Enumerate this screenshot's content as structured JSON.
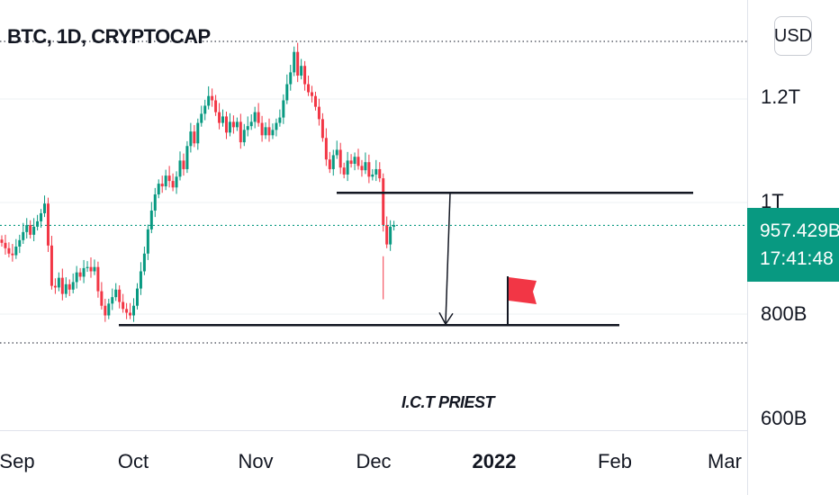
{
  "chart_data": {
    "type": "candlestick",
    "symbol": "BTC, 1D, CRYPTOCAP",
    "currency": "USD",
    "watermark": "I.C.T PRIEST",
    "current_price": "957.429B",
    "countdown": "17:41:48",
    "y_ticks": [
      "1.2T",
      "1T",
      "800B",
      "600B"
    ],
    "x_ticks": [
      "Sep",
      "Oct",
      "Nov",
      "Dec",
      "2022",
      "Feb",
      "Mar"
    ],
    "ylim": [
      600,
      1310
    ],
    "up_color": "#089981",
    "down_color": "#f23645",
    "close_series": [
      925,
      915,
      905,
      902,
      918,
      930,
      945,
      958,
      940,
      955,
      965,
      980,
      998,
      920,
      845,
      842,
      860,
      830,
      848,
      838,
      852,
      870,
      862,
      878,
      880,
      872,
      880,
      835,
      808,
      790,
      812,
      824,
      838,
      815,
      802,
      795,
      790,
      808,
      840,
      872,
      905,
      950,
      985,
      1015,
      1035,
      1030,
      1050,
      1040,
      1028,
      1048,
      1078,
      1062,
      1105,
      1132,
      1110,
      1148,
      1165,
      1180,
      1198,
      1190,
      1168,
      1148,
      1160,
      1130,
      1150,
      1140,
      1150,
      1112,
      1135,
      1142,
      1150,
      1168,
      1148,
      1125,
      1140,
      1125,
      1135,
      1148,
      1158,
      1190,
      1220,
      1242,
      1280,
      1236,
      1254,
      1220,
      1205,
      1198,
      1178,
      1155,
      1120,
      1080,
      1062,
      1088,
      1098,
      1065,
      1052,
      1078,
      1072,
      1085,
      1068,
      1060,
      1075,
      1048,
      1052,
      1062,
      1045,
      958,
      922,
      955,
      958
    ],
    "annotations": {
      "upper_line_level": 1018,
      "lower_line_level": 772,
      "arrow": "down from upper line to lower line",
      "flag_color": "#f23645",
      "dotted_level": "current price"
    }
  }
}
